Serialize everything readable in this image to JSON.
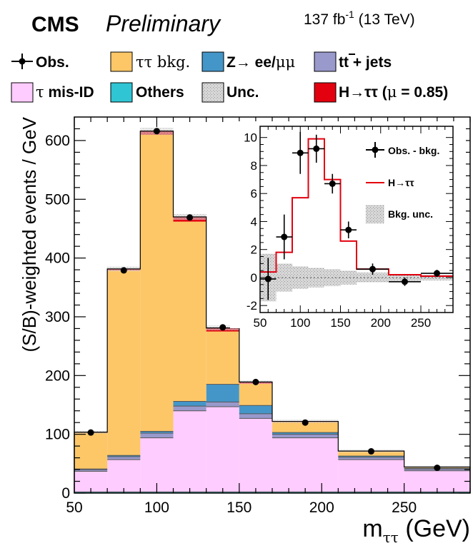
{
  "header": {
    "experiment": "CMS",
    "status": "Preliminary",
    "lumi": "137 fb",
    "lumi_exp": "-1",
    "energy": " (13 TeV)"
  },
  "legend": {
    "obs": "Obs.",
    "tautau_bkg": "ττ bkg.",
    "z_prefix": "Z",
    "z_arrow": "→",
    "z_ee": " ee/",
    "z_mumu": "μμ",
    "ttbar_t": "t",
    "ttbar_tbar": "t",
    "ttbar_rest": " + jets",
    "mis_tau": "τ",
    "mis_rest": " mis-ID",
    "others": "Others",
    "unc": "Unc.",
    "h_label": "H→ττ (",
    "h_mu": "μ",
    "h_rest": " = 0.85)"
  },
  "colors": {
    "tautau": "#fdc768",
    "zll": "#4496c8",
    "ttbar": "#9999cc",
    "misid": "#ffccff",
    "others": "#2fc5d4",
    "higgs": "#e3000f",
    "unc": "#a0a0a0"
  },
  "chart_data": [
    {
      "type": "area",
      "ylabel": "(S/B)-weighted events / GeV",
      "xlabel_main": "m",
      "xlabel_sub": "ττ",
      "xlabel_unit": " (GeV)",
      "xlim": [
        50,
        290
      ],
      "ylim": [
        0,
        640
      ],
      "xticks": [
        50,
        100,
        150,
        200,
        250
      ],
      "yticks": [
        0,
        100,
        200,
        300,
        400,
        500,
        600
      ],
      "bin_edges": [
        50,
        70,
        90,
        110,
        130,
        150,
        170,
        210,
        250,
        290
      ],
      "series": [
        {
          "name": "Others",
          "values": [
            2,
            2,
            2,
            2,
            2,
            2,
            2,
            2,
            2
          ]
        },
        {
          "name": "τ mis-ID",
          "values": [
            35,
            55,
            92,
            138,
            145,
            125,
            92,
            55,
            36
          ]
        },
        {
          "name": "tt̄ + jets",
          "values": [
            3,
            5,
            8,
            8,
            8,
            8,
            6,
            4,
            3
          ]
        },
        {
          "name": "Z→ ee/μμ",
          "values": [
            1,
            2,
            3,
            8,
            30,
            14,
            3,
            2,
            1
          ]
        },
        {
          "name": "ττ bkg.",
          "values": [
            62,
            315,
            505,
            306,
            90,
            37,
            18,
            8,
            2
          ]
        },
        {
          "name": "H→ττ (μ = 0.85)",
          "values": [
            0.5,
            2.5,
            6,
            8,
            6,
            3,
            1,
            0.5,
            0.3
          ]
        }
      ],
      "observed": {
        "x": [
          60,
          80,
          100,
          120,
          140,
          160,
          190,
          230,
          270
        ],
        "y": [
          103,
          379,
          616,
          469,
          282,
          189,
          120,
          71,
          43
        ]
      },
      "unc_band_total": [
        103.5,
        381.5,
        616,
        470,
        281,
        189,
        122,
        71.5,
        44.3
      ],
      "unc_halfwidth": [
        2,
        4,
        6,
        5,
        4,
        3,
        2.5,
        2,
        1.5
      ]
    },
    {
      "type": "line",
      "legend": [
        "Obs. - bkg.",
        "H→ττ",
        "Bkg. unc."
      ],
      "xlim": [
        50,
        290
      ],
      "ylim": [
        -2.5,
        10.8
      ],
      "xticks": [
        50,
        100,
        150,
        200,
        250
      ],
      "yticks": [
        -2,
        0,
        2,
        4,
        6,
        8,
        10
      ],
      "bin_edges": [
        50,
        70,
        90,
        110,
        130,
        150,
        170,
        210,
        250,
        290
      ],
      "signal": [
        0.4,
        1.8,
        5.7,
        9.9,
        7.0,
        2.6,
        0.6,
        0.2,
        0.1
      ],
      "obs_minus_bkg": {
        "x": [
          60,
          80,
          100,
          120,
          140,
          160,
          190,
          230,
          270
        ],
        "y": [
          -0.1,
          2.9,
          8.9,
          9.2,
          6.7,
          3.4,
          0.6,
          -0.3,
          0.3
        ],
        "err": [
          1.5,
          1.6,
          1.5,
          1.0,
          0.7,
          0.6,
          0.4,
          0.3,
          0.25
        ]
      },
      "bkg_unc": [
        1.7,
        1.0,
        0.8,
        0.7,
        0.6,
        0.5,
        0.35,
        0.25,
        0.2
      ]
    }
  ]
}
